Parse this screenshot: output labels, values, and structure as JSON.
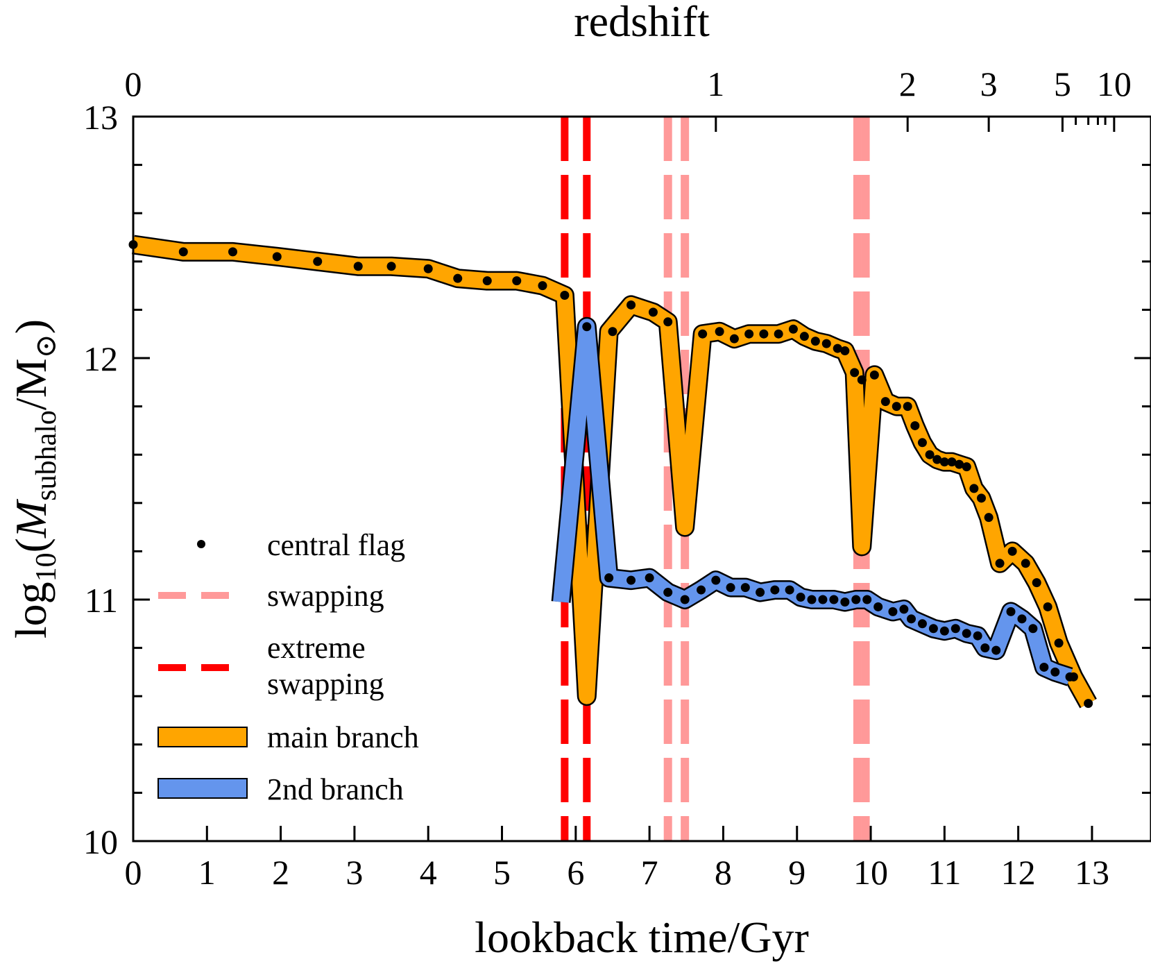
{
  "chart_data": {
    "type": "line",
    "title": "",
    "xlabel": "lookback time/Gyr",
    "ylabel": "log",
    "ylabel_sub": "10",
    "ylabel_open": "(",
    "ylabel_m": "M",
    "ylabel_msub": "subhalo",
    "ylabel_slash": "/M",
    "ylabel_odot": "⊙",
    "ylabel_close": ")",
    "top_axis_label": "redshift",
    "xlim": [
      0,
      13.8
    ],
    "ylim": [
      10,
      13
    ],
    "x_ticks": [
      "0",
      "1",
      "2",
      "3",
      "4",
      "5",
      "6",
      "7",
      "8",
      "9",
      "10",
      "11",
      "12",
      "13"
    ],
    "y_ticks": [
      "10",
      "11",
      "12",
      "13"
    ],
    "top_ticks": [
      {
        "label": "0",
        "t": 0
      },
      {
        "label": "1",
        "t": 7.9
      },
      {
        "label": "2",
        "t": 10.5
      },
      {
        "label": "3",
        "t": 11.6
      },
      {
        "label": "5",
        "t": 12.6
      },
      {
        "label": "10",
        "t": 13.3
      }
    ],
    "swapping_lines": [
      7.25,
      7.48,
      9.82,
      9.93
    ],
    "extreme_swapping_lines": [
      5.85,
      6.15
    ],
    "series": [
      {
        "name": "main branch",
        "color": "#ffa500",
        "x": [
          0,
          0.68,
          1.35,
          1.95,
          2.5,
          3.05,
          3.5,
          4,
          4.4,
          4.8,
          5.2,
          5.55,
          5.85,
          6.15,
          6.45,
          6.75,
          7.05,
          7.25,
          7.48,
          7.72,
          7.95,
          8.15,
          8.35,
          8.55,
          8.75,
          8.95,
          9.1,
          9.25,
          9.4,
          9.55,
          9.65,
          9.78,
          9.88,
          10.05,
          10.2,
          10.35,
          10.5,
          10.6,
          10.7,
          10.8,
          10.9,
          11.0,
          11.1,
          11.2,
          11.3,
          11.4,
          11.5,
          11.6,
          11.75,
          11.92,
          12.1,
          12.25,
          12.4,
          12.55,
          12.75,
          12.95
        ],
        "y": [
          12.47,
          12.44,
          12.44,
          12.42,
          12.4,
          12.38,
          12.38,
          12.37,
          12.33,
          12.32,
          12.32,
          12.3,
          12.26,
          10.6,
          12.11,
          12.22,
          12.19,
          12.15,
          11.3,
          12.1,
          12.11,
          12.08,
          12.1,
          12.1,
          12.1,
          12.12,
          12.09,
          12.07,
          12.06,
          12.04,
          12.03,
          11.94,
          11.22,
          11.93,
          11.82,
          11.8,
          11.8,
          11.72,
          11.65,
          11.6,
          11.58,
          11.57,
          11.57,
          11.56,
          11.55,
          11.46,
          11.42,
          11.34,
          11.15,
          11.2,
          11.15,
          11.07,
          10.97,
          10.82,
          10.68,
          10.57
        ]
      },
      {
        "name": "2nd branch",
        "color": "#6495ed",
        "x": [
          5.8,
          6.15,
          6.45,
          6.75,
          7.0,
          7.25,
          7.48,
          7.7,
          7.9,
          8.1,
          8.3,
          8.5,
          8.7,
          8.9,
          9.05,
          9.2,
          9.35,
          9.5,
          9.65,
          9.8,
          9.95,
          10.1,
          10.3,
          10.45,
          10.55,
          10.7,
          10.85,
          11.0,
          11.15,
          11.3,
          11.45,
          11.55,
          11.7,
          11.9,
          12.05,
          12.2,
          12.35,
          12.5,
          12.7
        ],
        "y": [
          10.99,
          12.13,
          11.09,
          11.08,
          11.09,
          11.03,
          11.0,
          11.04,
          11.08,
          11.05,
          11.05,
          11.03,
          11.04,
          11.04,
          11.01,
          11.0,
          11.0,
          11.0,
          10.99,
          11.0,
          11.0,
          10.97,
          10.95,
          10.96,
          10.92,
          10.9,
          10.88,
          10.87,
          10.88,
          10.86,
          10.85,
          10.8,
          10.79,
          10.95,
          10.92,
          10.88,
          10.72,
          10.7,
          10.68
        ]
      }
    ],
    "central_flag": {
      "x": [
        0,
        0.68,
        1.35,
        1.95,
        2.5,
        3.05,
        3.5,
        4,
        4.4,
        4.8,
        5.2,
        5.55,
        5.85,
        6.15,
        6.5,
        6.75,
        7.05,
        7.25,
        7.72,
        7.95,
        8.15,
        8.35,
        8.55,
        8.75,
        8.95,
        9.1,
        9.25,
        9.4,
        9.55,
        9.65,
        9.78,
        9.88,
        10.05,
        10.2,
        10.35,
        10.5,
        10.6,
        10.7,
        10.8,
        10.9,
        11.0,
        11.1,
        11.2,
        11.3,
        11.4,
        11.5,
        11.6,
        11.75,
        11.92,
        12.1,
        12.25,
        12.4,
        12.55,
        12.75,
        12.95,
        6.45,
        6.75,
        7.0,
        7.25,
        7.48,
        7.7,
        7.9,
        8.1,
        8.3,
        8.5,
        8.7,
        8.9,
        9.05,
        9.2,
        9.35,
        9.5,
        9.65,
        9.8,
        9.95,
        10.1,
        10.3,
        10.45,
        10.55,
        10.7,
        10.85,
        11.0,
        11.15,
        11.3,
        11.45,
        11.55,
        11.7,
        11.9,
        12.05,
        12.2,
        12.35,
        12.5,
        12.7
      ],
      "y": [
        12.47,
        12.44,
        12.44,
        12.42,
        12.4,
        12.38,
        12.38,
        12.37,
        12.33,
        12.32,
        12.32,
        12.3,
        12.26,
        12.13,
        12.11,
        12.22,
        12.19,
        12.15,
        12.1,
        12.11,
        12.08,
        12.1,
        12.1,
        12.1,
        12.12,
        12.09,
        12.07,
        12.06,
        12.04,
        12.03,
        11.94,
        11.91,
        11.93,
        11.82,
        11.8,
        11.8,
        11.72,
        11.65,
        11.6,
        11.58,
        11.57,
        11.57,
        11.56,
        11.55,
        11.46,
        11.42,
        11.34,
        11.15,
        11.2,
        11.15,
        11.07,
        10.97,
        10.82,
        10.68,
        10.57,
        11.09,
        11.08,
        11.09,
        11.03,
        11.0,
        11.04,
        11.08,
        11.05,
        11.05,
        11.03,
        11.04,
        11.04,
        11.01,
        11.0,
        11.0,
        11.0,
        10.99,
        11.0,
        11.0,
        10.97,
        10.95,
        10.96,
        10.92,
        10.9,
        10.88,
        10.87,
        10.88,
        10.86,
        10.85,
        10.8,
        10.79,
        10.95,
        10.92,
        10.88,
        10.72,
        10.7,
        10.68
      ]
    },
    "legend": {
      "placement": "lower-left",
      "central_flag": "central flag",
      "swapping": "swapping",
      "extreme_line1": "extreme",
      "extreme_line2": "swapping",
      "main_branch": "main branch",
      "second_branch": "2nd branch"
    },
    "colors": {
      "main": "#ffa500",
      "second": "#6495ed",
      "swapping": "#ff9999",
      "extreme": "#ff0000",
      "dots": "#000000"
    }
  }
}
